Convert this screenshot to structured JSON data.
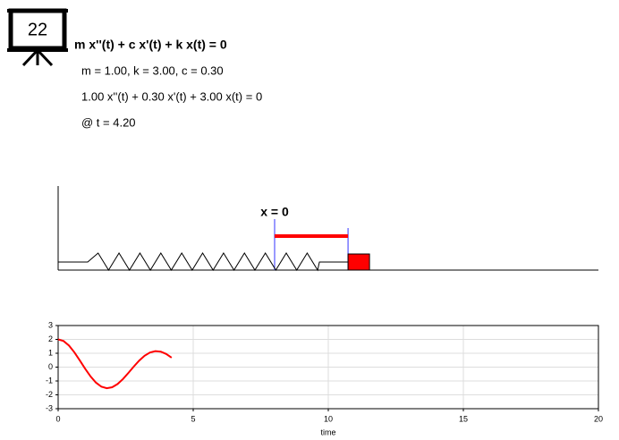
{
  "slide_number": "22",
  "equation": "m x''(t) + c x'(t) + k x(t) = 0",
  "parameters": "m = 1.00, k = 3.00, c = 0.30",
  "instance": "1.00 x''(t) + 0.30 x'(t) + 3.00 x(t) = 0",
  "time_stamp": "@ t = 4.20",
  "equilibrium_label": "x = 0",
  "chart_data": {
    "type": "line",
    "x": [
      0,
      0.2,
      0.4,
      0.6,
      0.8,
      1.0,
      1.2,
      1.4,
      1.6,
      1.8,
      2.0,
      2.2,
      2.4,
      2.6,
      2.8,
      3.0,
      3.2,
      3.4,
      3.6,
      3.8,
      4.0,
      4.2
    ],
    "series": [
      {
        "color": "#ff0000",
        "values": [
          2,
          1.883,
          1.557,
          1.07,
          0.487,
          -0.118,
          -0.673,
          -1.12,
          -1.411,
          -1.521,
          -1.451,
          -1.22,
          -0.861,
          -0.419,
          0.042,
          0.471,
          0.822,
          1.055,
          1.154,
          1.115,
          0.949,
          0.684
        ]
      }
    ],
    "xlabel": "time",
    "xlim": [
      0,
      20
    ],
    "xticks": [
      0,
      5,
      10,
      15,
      20
    ],
    "ylim": [
      -3,
      3
    ],
    "yticks": [
      -3,
      -2,
      -1,
      0,
      1,
      2,
      3
    ],
    "grid": true
  }
}
